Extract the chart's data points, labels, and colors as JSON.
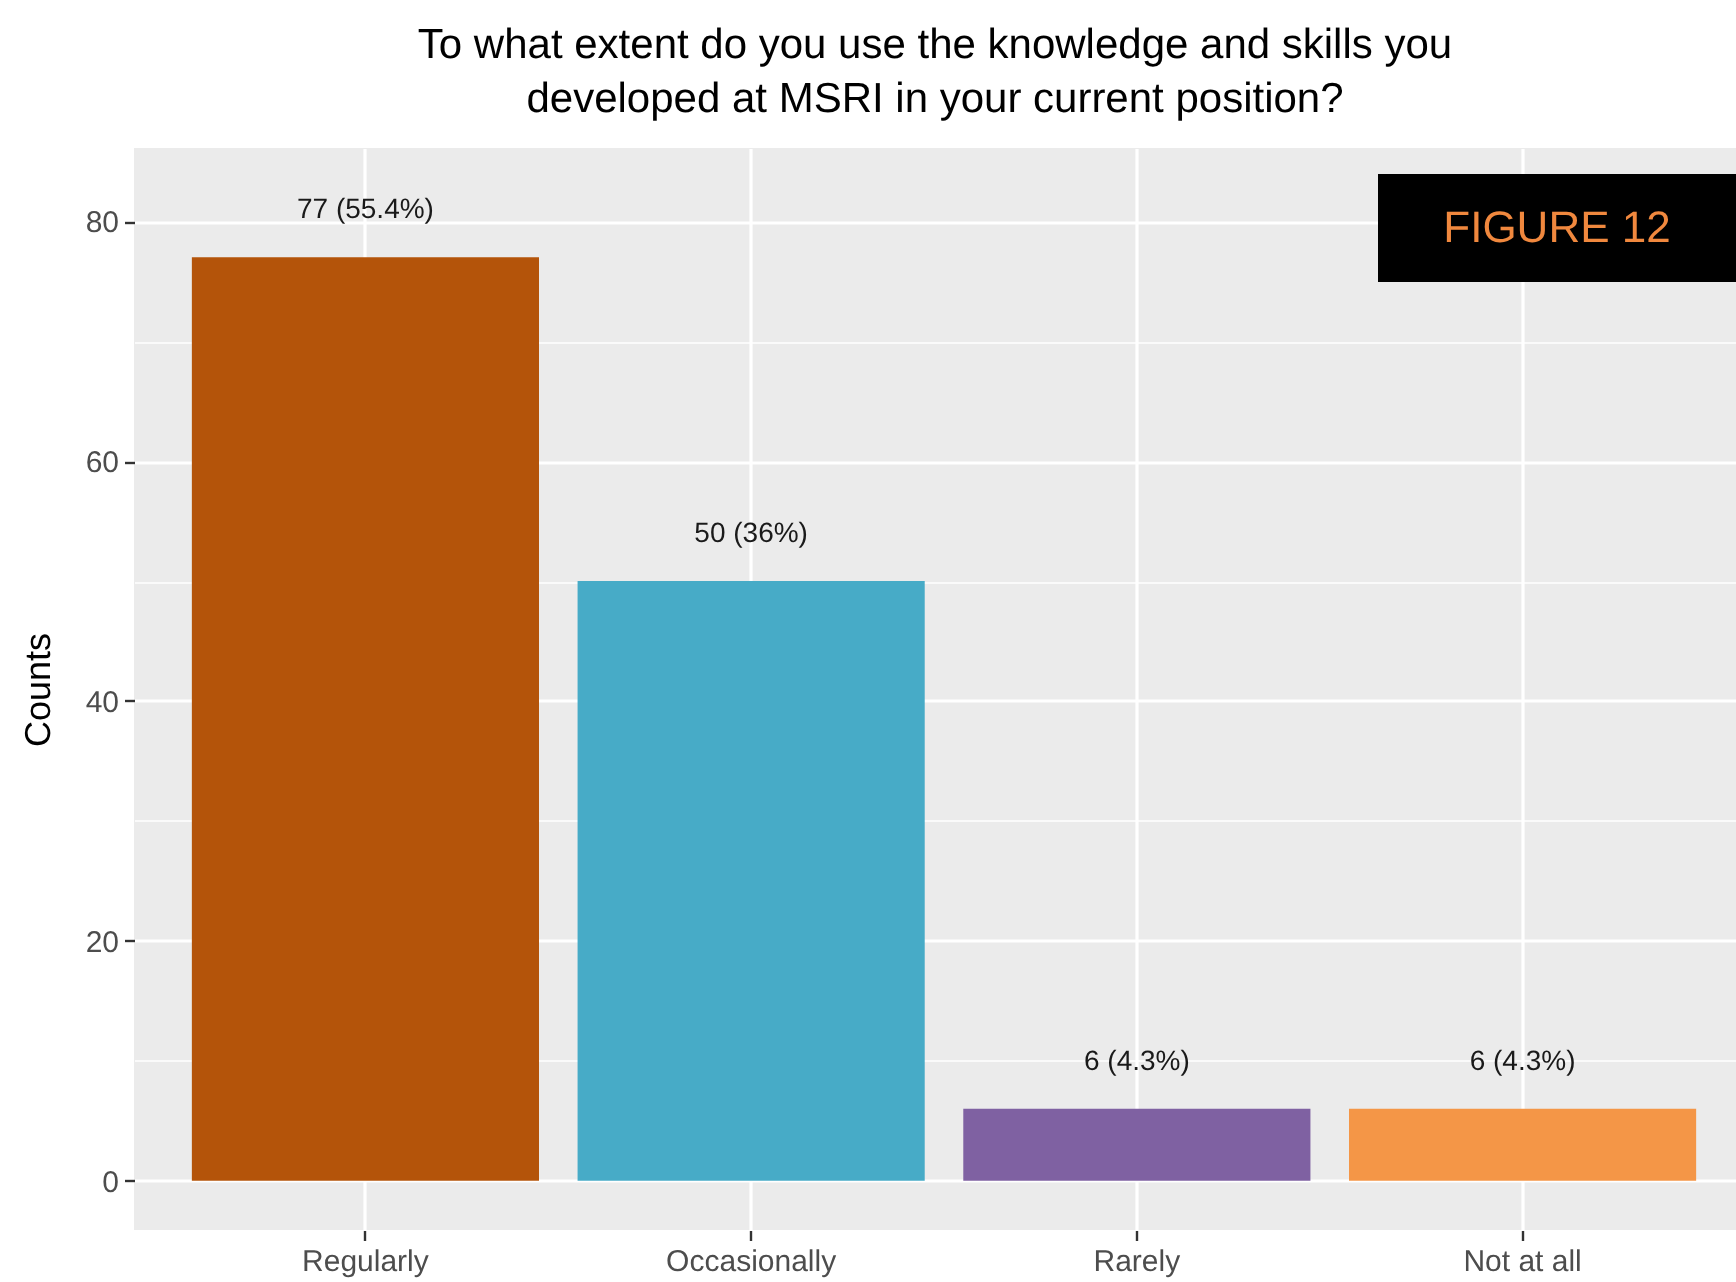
{
  "chart_data": {
    "type": "bar",
    "title": "To what extent do you use the knowledge and skills you developed at MSRI in your current position?",
    "ylabel": "Counts",
    "categories": [
      "Regularly",
      "Occasionally",
      "Rarely",
      "Not at all"
    ],
    "values": [
      77,
      50,
      6,
      6
    ],
    "colors": [
      "#b4540a",
      "#47abc7",
      "#7f61a2",
      "#f49647"
    ],
    "value_labels": [
      "77 (55.4%)",
      "50 (36%)",
      "6 (4.3%)",
      "6 (4.3%)"
    ],
    "ylim": [
      -4.1,
      86.1
    ],
    "yticks": [
      0,
      {
        "value": 10,
        "label": null
      },
      20,
      {
        "value": 30,
        "label": null
      },
      40,
      {
        "value": 50,
        "label": null
      },
      60,
      {
        "value": 70,
        "label": null
      },
      80
    ],
    "grid": true,
    "annotations": [
      "FIGURE 12"
    ]
  }
}
